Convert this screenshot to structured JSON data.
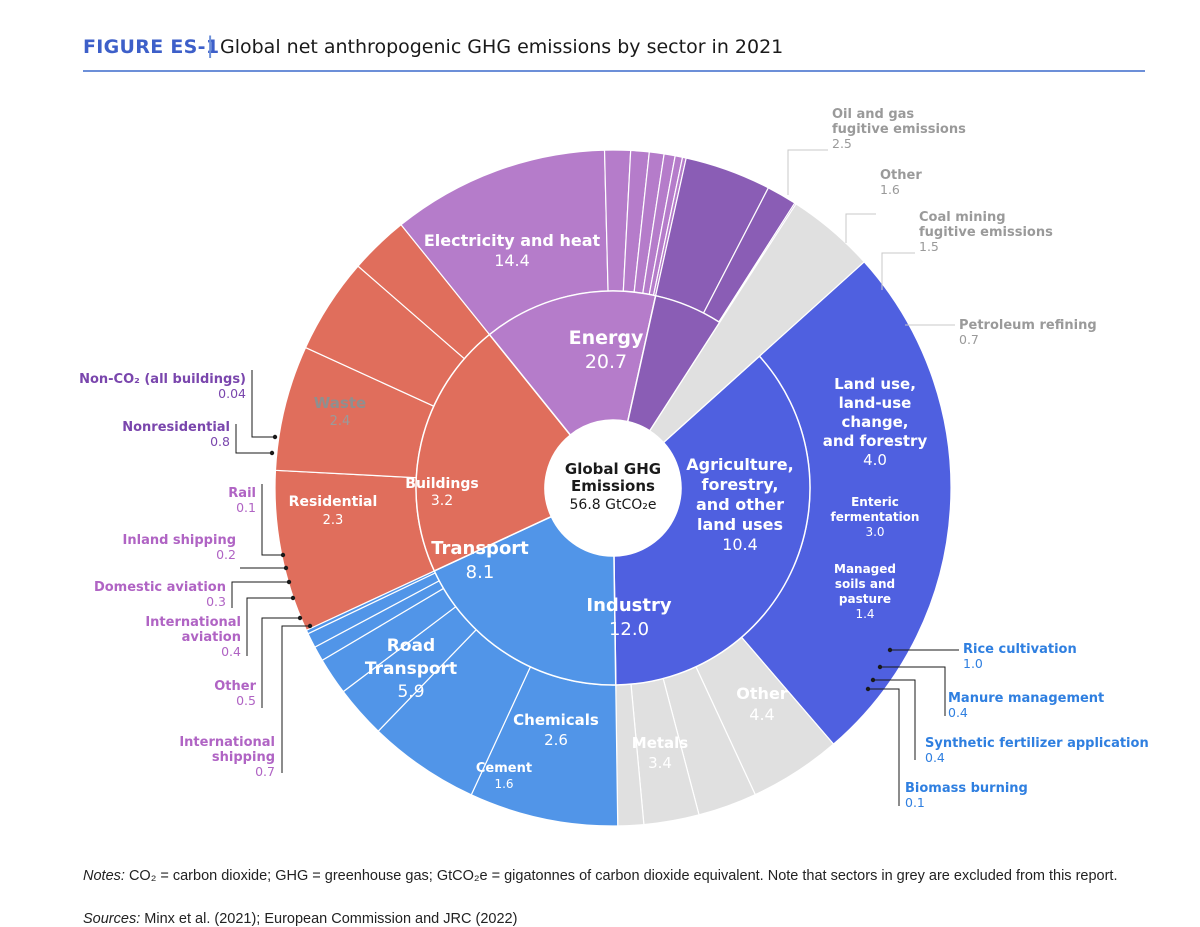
{
  "figure": {
    "label": "FIGURE ES-1",
    "separator": "|",
    "title": "Global net anthropogenic GHG emissions by sector in 2021"
  },
  "center": {
    "line1": "Global GHG",
    "line2": "Emissions",
    "value": "56.8 GtCO₂e"
  },
  "notes": {
    "prefix": "Notes:",
    "text": "CO₂ = carbon dioxide; GHG = greenhouse gas; GtCO₂e = gigatonnes of carbon dioxide equivalent. Note that sectors in grey are excluded from this report."
  },
  "sources": {
    "prefix": "Sources:",
    "text": "Minx et al. (2021); European Commission and JRC (2022)"
  },
  "colors": {
    "energy": "#4f60e0",
    "grey": "#e0e0e0",
    "agriculture": "#5195e8",
    "industry": "#e06e5c",
    "transport": "#b57cca",
    "buildings": "#8a5db5",
    "grey_text": "#9a9a9a",
    "agri_text": "#2f7fe0",
    "transport_text": "#b064c4",
    "buildings_text": "#7a46ad"
  },
  "chart_data": {
    "type": "sunburst",
    "unit": "GtCO₂e",
    "total": 56.8,
    "sectors": [
      {
        "name": "Energy",
        "value": 20.7,
        "color": "energy",
        "children": [
          {
            "name": "Electricity and heat",
            "value": 14.4,
            "color": "energy"
          },
          {
            "name": "Oil and gas fugitive emissions",
            "value": 2.5,
            "color": "grey"
          },
          {
            "name": "Other",
            "value": 1.6,
            "color": "grey"
          },
          {
            "name": "Coal mining fugitive emissions",
            "value": 1.5,
            "color": "grey"
          },
          {
            "name": "Petroleum refining",
            "value": 0.7,
            "color": "grey"
          }
        ]
      },
      {
        "name": "Agriculture, forestry, and other land uses",
        "value": 10.4,
        "color": "agriculture",
        "children": [
          {
            "name": "Land use, land-use change, and forestry",
            "value": 4.0,
            "color": "agriculture"
          },
          {
            "name": "Enteric fermentation",
            "value": 3.0,
            "color": "agriculture"
          },
          {
            "name": "Managed soils and pasture",
            "value": 1.4,
            "color": "agriculture"
          },
          {
            "name": "Rice cultivation",
            "value": 1.0,
            "color": "agriculture"
          },
          {
            "name": "Manure management",
            "value": 0.4,
            "color": "agriculture"
          },
          {
            "name": "Synthetic fertilizer application",
            "value": 0.4,
            "color": "agriculture"
          },
          {
            "name": "Biomass burning",
            "value": 0.1,
            "color": "agriculture"
          }
        ]
      },
      {
        "name": "Industry",
        "value": 12.0,
        "color": "industry",
        "children": [
          {
            "name": "Other",
            "value": 4.4,
            "color": "industry"
          },
          {
            "name": "Metals",
            "value": 3.4,
            "color": "industry"
          },
          {
            "name": "Chemicals",
            "value": 2.6,
            "color": "industry"
          },
          {
            "name": "Cement",
            "value": 1.6,
            "color": "industry"
          }
        ]
      },
      {
        "name": "Transport",
        "value": 8.1,
        "color": "transport",
        "children": [
          {
            "name": "Road Transport",
            "value": 5.9,
            "color": "transport"
          },
          {
            "name": "International shipping",
            "value": 0.7,
            "color": "transport"
          },
          {
            "name": "Other",
            "value": 0.5,
            "color": "transport"
          },
          {
            "name": "International aviation",
            "value": 0.4,
            "color": "transport"
          },
          {
            "name": "Domestic aviation",
            "value": 0.3,
            "color": "transport"
          },
          {
            "name": "Inland shipping",
            "value": 0.2,
            "color": "transport"
          },
          {
            "name": "Rail",
            "value": 0.1,
            "color": "transport"
          }
        ]
      },
      {
        "name": "Buildings",
        "value": 3.2,
        "color": "buildings",
        "children": [
          {
            "name": "Residential",
            "value": 2.3,
            "color": "buildings"
          },
          {
            "name": "Nonresidential",
            "value": 0.8,
            "color": "buildings"
          },
          {
            "name": "Non-CO₂ (all buildings)",
            "value": 0.04,
            "color": "buildings"
          }
        ]
      },
      {
        "name": "Waste",
        "value": 2.4,
        "color": "grey",
        "children": []
      }
    ]
  },
  "labels": {
    "inner": [
      {
        "key": "energy",
        "lines": [
          "Energy"
        ],
        "value": "20.7"
      },
      {
        "key": "agriculture",
        "lines": [
          "Agriculture,",
          "forestry,",
          "and other",
          "land uses"
        ],
        "value": "10.4"
      },
      {
        "key": "industry",
        "lines": [
          "Industry"
        ],
        "value": "12.0"
      },
      {
        "key": "transport",
        "lines": [
          "Transport"
        ],
        "value": "8.1"
      },
      {
        "key": "buildings",
        "lines": [
          "Buildings"
        ],
        "value": "3.2"
      },
      {
        "key": "waste",
        "lines": [
          "Waste"
        ],
        "value": "2.4"
      }
    ],
    "outer_in": [
      {
        "key": "electricity",
        "lines": [
          "Electricity and heat"
        ],
        "value": "14.4"
      },
      {
        "key": "luluc",
        "lines": [
          "Land use,",
          "land-use",
          "change,",
          "and forestry"
        ],
        "value": "4.0"
      },
      {
        "key": "enteric",
        "lines": [
          "Enteric",
          "fermentation"
        ],
        "value": "3.0"
      },
      {
        "key": "soils",
        "lines": [
          "Managed",
          "soils and",
          "pasture"
        ],
        "value": "1.4"
      },
      {
        "key": "ind-other",
        "lines": [
          "Other"
        ],
        "value": "4.4"
      },
      {
        "key": "metals",
        "lines": [
          "Metals"
        ],
        "value": "3.4"
      },
      {
        "key": "chemicals",
        "lines": [
          "Chemicals"
        ],
        "value": "2.6"
      },
      {
        "key": "cement",
        "lines": [
          "Cement"
        ],
        "value": "1.6"
      },
      {
        "key": "road",
        "lines": [
          "Road",
          "Transport"
        ],
        "value": "5.9"
      },
      {
        "key": "residential",
        "lines": [
          "Residential"
        ],
        "value": "2.3"
      }
    ],
    "callouts": [
      {
        "key": "oilgas",
        "lines": [
          "Oil and gas",
          "fugitive emissions"
        ],
        "value": "2.5",
        "tone": "grey"
      },
      {
        "key": "energy-other",
        "lines": [
          "Other"
        ],
        "value": "1.6",
        "tone": "grey"
      },
      {
        "key": "coal",
        "lines": [
          "Coal mining",
          "fugitive emissions"
        ],
        "value": "1.5",
        "tone": "grey"
      },
      {
        "key": "refining",
        "lines": [
          "Petroleum refining"
        ],
        "value": "0.7",
        "tone": "grey"
      },
      {
        "key": "rice",
        "lines": [
          "Rice cultivation"
        ],
        "value": "1.0",
        "tone": "agri"
      },
      {
        "key": "manure",
        "lines": [
          "Manure management"
        ],
        "value": "0.4",
        "tone": "agri"
      },
      {
        "key": "fertilizer",
        "lines": [
          "Synthetic fertilizer application"
        ],
        "value": "0.4",
        "tone": "agri"
      },
      {
        "key": "biomass",
        "lines": [
          "Biomass burning"
        ],
        "value": "0.1",
        "tone": "agri"
      },
      {
        "key": "nonco2",
        "lines": [
          "Non-CO₂ (all buildings)"
        ],
        "value": "0.04",
        "tone": "bld"
      },
      {
        "key": "nonres",
        "lines": [
          "Nonresidential"
        ],
        "value": "0.8",
        "tone": "bld"
      },
      {
        "key": "rail",
        "lines": [
          "Rail"
        ],
        "value": "0.1",
        "tone": "tr"
      },
      {
        "key": "inland",
        "lines": [
          "Inland shipping"
        ],
        "value": "0.2",
        "tone": "tr"
      },
      {
        "key": "domav",
        "lines": [
          "Domestic aviation"
        ],
        "value": "0.3",
        "tone": "tr"
      },
      {
        "key": "intav",
        "lines": [
          "International",
          "aviation"
        ],
        "value": "0.4",
        "tone": "tr"
      },
      {
        "key": "tr-other",
        "lines": [
          "Other"
        ],
        "value": "0.5",
        "tone": "tr"
      },
      {
        "key": "intship",
        "lines": [
          "International",
          "shipping"
        ],
        "value": "0.7",
        "tone": "tr"
      }
    ]
  }
}
